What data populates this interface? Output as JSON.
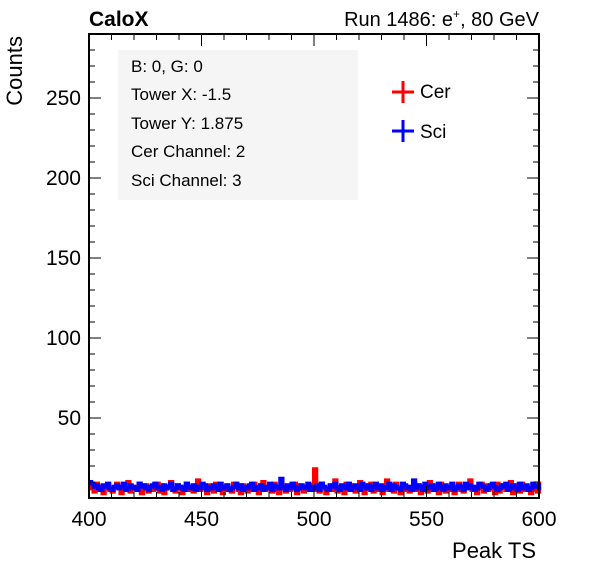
{
  "header": {
    "left_label": "CaloX",
    "right_label_prefix": "Run 1486: e",
    "right_label_sup": "+",
    "right_label_suffix": ", 80 GeV"
  },
  "info_box": [
    "B: 0, G: 0",
    "Tower X: -1.5",
    "Tower Y: 1.875",
    "Cer Channel: 2",
    "Sci Channel: 3"
  ],
  "chart_data": {
    "type": "line",
    "xlabel": "Peak TS",
    "ylabel": "Counts",
    "xlim": [
      400,
      600
    ],
    "ylim": [
      0,
      290
    ],
    "x_ticks": [
      400,
      450,
      500,
      550,
      600
    ],
    "y_ticks": [
      50,
      100,
      150,
      200,
      250
    ],
    "legend_position": "top-right",
    "bin_edges": [
      400,
      600
    ],
    "bin_width": 1,
    "series": [
      {
        "name": "Cer",
        "color": "#ff0000",
        "values": [
          6,
          8,
          4,
          9,
          5,
          7,
          3,
          6,
          8,
          5,
          4,
          7,
          9,
          6,
          3,
          5,
          8,
          10,
          4,
          6,
          7,
          5,
          9,
          3,
          6,
          8,
          4,
          7,
          5,
          6,
          9,
          4,
          8,
          3,
          6,
          7,
          10,
          5,
          4,
          8,
          6,
          3,
          7,
          9,
          5,
          6,
          4,
          8,
          11,
          5,
          7,
          6,
          3,
          8,
          5,
          4,
          9,
          6,
          7,
          3,
          5,
          8,
          6,
          4,
          9,
          7,
          5,
          3,
          8,
          6,
          4,
          7,
          5,
          9,
          6,
          3,
          8,
          10,
          5,
          6,
          7,
          4,
          9,
          5,
          3,
          6,
          8,
          4,
          7,
          5,
          6,
          9,
          3,
          8,
          6,
          4,
          7,
          5,
          8,
          6,
          18,
          5,
          4,
          9,
          7,
          3,
          6,
          8,
          5,
          11,
          4,
          7,
          6,
          3,
          9,
          5,
          8,
          6,
          4,
          7,
          10,
          5,
          3,
          8,
          6,
          9,
          4,
          7,
          5,
          6,
          3,
          8,
          11,
          5,
          7,
          4,
          9,
          6,
          3,
          8,
          5,
          7,
          4,
          6,
          9,
          5,
          8,
          3,
          6,
          7,
          4,
          10,
          5,
          8,
          6,
          3,
          9,
          7,
          4,
          6,
          5,
          8,
          3,
          7,
          9,
          5,
          4,
          6,
          8,
          11,
          5,
          7,
          3,
          6,
          9,
          4,
          8,
          5,
          7,
          6,
          3,
          9,
          4,
          8,
          6,
          5,
          7,
          10,
          3,
          6,
          8,
          4,
          9,
          5,
          7,
          6,
          3,
          8,
          5,
          4,
          9
        ],
        "line_width": 4
      },
      {
        "name": "Sci",
        "color": "#0000ff",
        "values": [
          10,
          9,
          7,
          8,
          6,
          5,
          8,
          7,
          9,
          6,
          5,
          7,
          8,
          6,
          7,
          9,
          5,
          6,
          8,
          7,
          6,
          5,
          9,
          7,
          8,
          6,
          5,
          7,
          8,
          9,
          6,
          7,
          5,
          8,
          6,
          7,
          9,
          5,
          6,
          8,
          7,
          6,
          5,
          9,
          7,
          6,
          8,
          5,
          7,
          6,
          9,
          8,
          5,
          7,
          6,
          8,
          7,
          5,
          9,
          6,
          7,
          8,
          5,
          6,
          7,
          9,
          6,
          8,
          5,
          7,
          6,
          8,
          9,
          5,
          7,
          6,
          8,
          5,
          7,
          6,
          9,
          5,
          8,
          7,
          6,
          12,
          7,
          5,
          8,
          6,
          9,
          7,
          5,
          6,
          8,
          7,
          6,
          9,
          5,
          7,
          6,
          8,
          5,
          9,
          7,
          6,
          5,
          8,
          7,
          9,
          6,
          5,
          8,
          7,
          6,
          9,
          5,
          7,
          8,
          6,
          5,
          9,
          7,
          6,
          8,
          5,
          7,
          9,
          6,
          8,
          5,
          7,
          6,
          9,
          5,
          8,
          7,
          6,
          5,
          9,
          8,
          6,
          7,
          5,
          11,
          6,
          8,
          7,
          5,
          9,
          6,
          7,
          8,
          5,
          6,
          9,
          7,
          5,
          8,
          6,
          7,
          9,
          5,
          6,
          8,
          7,
          5,
          9,
          6,
          8,
          7,
          5,
          6,
          9,
          8,
          7,
          5,
          6,
          8,
          9,
          7,
          5,
          6,
          8,
          7,
          9,
          5,
          6,
          8,
          7,
          5,
          9,
          6,
          7,
          8,
          5,
          6,
          9,
          7,
          8,
          6
        ],
        "line_width": 4
      }
    ]
  }
}
